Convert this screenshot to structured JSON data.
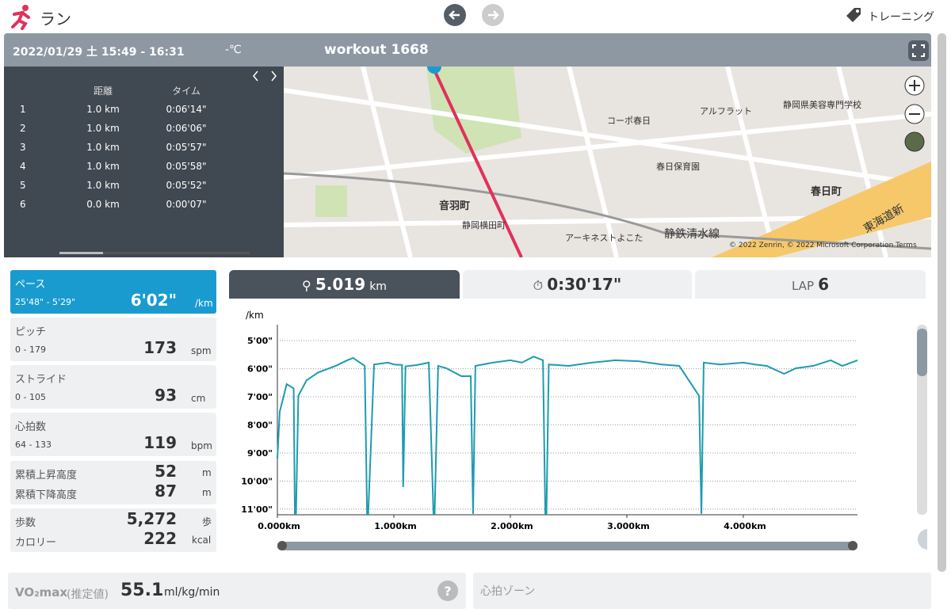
{
  "header": {
    "title": "ラン",
    "training_link": "トレーニング"
  },
  "workout": {
    "datetime": "2022/01/29 土 15:49 - 16:31",
    "temperature": "-℃",
    "name": "workout 1668"
  },
  "laps": {
    "headers": [
      "距離",
      "タイム"
    ],
    "rows": [
      [
        "1",
        "1.0 km",
        "0:06'14\""
      ],
      [
        "2",
        "1.0 km",
        "0:06'06\""
      ],
      [
        "3",
        "1.0 km",
        "0:05'57\""
      ],
      [
        "4",
        "1.0 km",
        "0:05'58\""
      ],
      [
        "5",
        "1.0 km",
        "0:05'52\""
      ],
      [
        "6",
        "0.0 km",
        "0:00'07\""
      ]
    ]
  },
  "map": {
    "labels": [
      "音羽町",
      "春日町",
      "静鉄清水線",
      "東海道新",
      "コーポ春日",
      "春日保育園",
      "アルフラット",
      "静岡県美容専門学校",
      "アーキネストよこた",
      "静岡横田町"
    ],
    "copyright": "© 2022 Zenrin, © 2022 Microsoft Corporation   Terms"
  },
  "stats": [
    {
      "label": "ペース",
      "range": "25'48\" - 5'29\"",
      "value": "6'02\"",
      "unit": "/km"
    },
    {
      "label": "ピッチ",
      "range": "0 - 179",
      "value": 173,
      "unit": "spm"
    },
    {
      "label": "ストライド",
      "range": "0 - 105",
      "value": 93,
      "unit": "cm"
    },
    {
      "label": "心拍数",
      "range": "64 - 133",
      "value": 119,
      "unit": "bpm"
    }
  ],
  "elevation": [
    {
      "label": "累積上昇高度",
      "value": 52,
      "unit": "m"
    },
    {
      "label": "累積下降高度",
      "value": 87,
      "unit": "m"
    }
  ],
  "steps": [
    {
      "label": "歩数",
      "value": "5,272",
      "unit": "歩"
    },
    {
      "label": "カロリー",
      "value": 222,
      "unit": "kcal"
    }
  ],
  "tabs": {
    "distance": {
      "value": 5.019,
      "unit": "km"
    },
    "time": "0:30'17\"",
    "lap": {
      "label": "LAP",
      "value": 6
    }
  },
  "pace_chart": {
    "type": "line",
    "y_label": "/km",
    "color": "#1f9bb0",
    "xlim": [
      0,
      4.98
    ],
    "ylim": [
      672,
      266
    ],
    "xticks": [
      {
        "value": 0,
        "label": "0.000km"
      },
      {
        "value": 1,
        "label": "1.000km"
      },
      {
        "value": 2,
        "label": "2.000km"
      },
      {
        "value": 3,
        "label": "3.000km"
      },
      {
        "value": 4,
        "label": "4.000km"
      }
    ],
    "yticks": [
      {
        "value": 300,
        "label": "5'00\""
      },
      {
        "value": 360,
        "label": "6'00\""
      },
      {
        "value": 420,
        "label": "7'00\""
      },
      {
        "value": 480,
        "label": "8'00\""
      },
      {
        "value": 540,
        "label": "9'00\""
      },
      {
        "value": 600,
        "label": "10'00\""
      },
      {
        "value": 660,
        "label": "11'00\""
      }
    ],
    "grid": true,
    "x": [
      0,
      0.02,
      0.08,
      0.14,
      0.15,
      0.16,
      0.18,
      0.25,
      0.35,
      0.5,
      0.6,
      0.65,
      0.75,
      0.77,
      0.78,
      0.83,
      0.95,
      1.0,
      1.07,
      1.08,
      1.1,
      1.2,
      1.3,
      1.34,
      1.35,
      1.38,
      1.45,
      1.58,
      1.66,
      1.68,
      1.7,
      1.85,
      2.0,
      2.1,
      2.2,
      2.28,
      2.3,
      2.31,
      2.33,
      2.5,
      2.7,
      2.9,
      3.1,
      3.3,
      3.45,
      3.62,
      3.64,
      3.66,
      3.8,
      4.0,
      4.1,
      4.2,
      4.35,
      4.45,
      4.6,
      4.75,
      4.85,
      4.98
    ],
    "values": [
      552,
      452,
      393,
      402,
      670,
      670,
      418,
      385,
      368,
      354,
      342,
      337,
      354,
      670,
      670,
      351,
      347,
      351,
      352,
      613,
      355,
      352,
      347,
      670,
      670,
      354,
      359,
      376,
      376,
      670,
      354,
      347,
      342,
      347,
      334,
      342,
      670,
      670,
      351,
      354,
      347,
      342,
      344,
      351,
      354,
      418,
      670,
      347,
      351,
      347,
      351,
      354,
      371,
      359,
      354,
      342,
      354,
      342
    ]
  },
  "vo2max": {
    "label": "VO₂max",
    "note": "(推定値)",
    "value": 55.1,
    "unit": "ml/kg/min"
  },
  "heart_zone": {
    "title": "心拍ゾーン"
  }
}
